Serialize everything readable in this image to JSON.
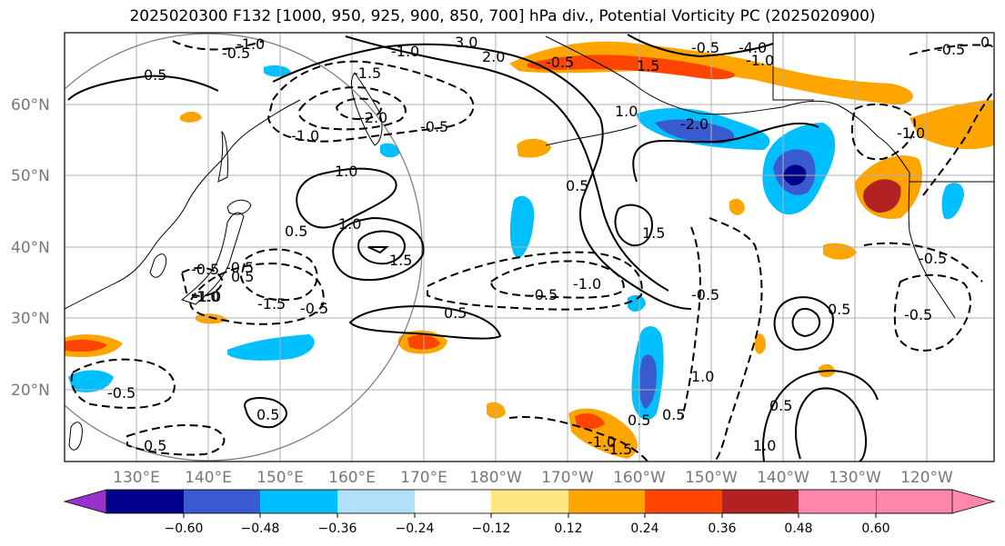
{
  "title": "2025020300 F132 [1000, 950, 925, 900, 850, 700] hPa div., Potential Vorticity PC (2025020900)",
  "map": {
    "lat_labels": [
      "60°N",
      "50°N",
      "40°N",
      "30°N",
      "20°N"
    ],
    "lon_labels": [
      "130°E",
      "140°E",
      "150°E",
      "160°E",
      "170°E",
      "180°W",
      "170°W",
      "160°W",
      "150°W",
      "140°W",
      "130°W",
      "120°W"
    ],
    "contour_labels": [
      "-1.0",
      "-0.5",
      "0.5",
      "3.0",
      "-1.0",
      "-1.5",
      "-2.0",
      "-0.5",
      "-1.0",
      "1.0",
      "1.0",
      "1.5",
      "0.5",
      "-0.5",
      "-1.0",
      "-1.5",
      "-0.5",
      "0.5",
      "-1.0",
      "-0.5",
      "0.5",
      "1.5",
      "0.5",
      "1.0",
      "-0.5",
      "0.5",
      "-1.0",
      "-1.5",
      "1.0",
      "0.5",
      "-0.5",
      "1.0",
      "0.5",
      "-2.0",
      "1.5",
      "-1.0",
      "-0.5",
      "-0.5",
      "0.5",
      "2.0",
      "-4.0",
      "-1.0",
      "-0.5",
      "-0.5",
      "0.5",
      "1.0",
      "0.5",
      "-0.5",
      "-0.5",
      "0.5"
    ]
  },
  "colorbar": {
    "tick_labels": [
      "−0.60",
      "−0.48",
      "−0.36",
      "−0.24",
      "−0.12",
      "0.12",
      "0.24",
      "0.36",
      "0.48",
      "0.60"
    ],
    "colors": [
      "#9932cc",
      "#00008b",
      "#3a5bcf",
      "#00bfff",
      "#b0e0fa",
      "#ffffff",
      "#ffe680",
      "#ffa500",
      "#ff4500",
      "#b22222",
      "#ff88aa"
    ]
  }
}
